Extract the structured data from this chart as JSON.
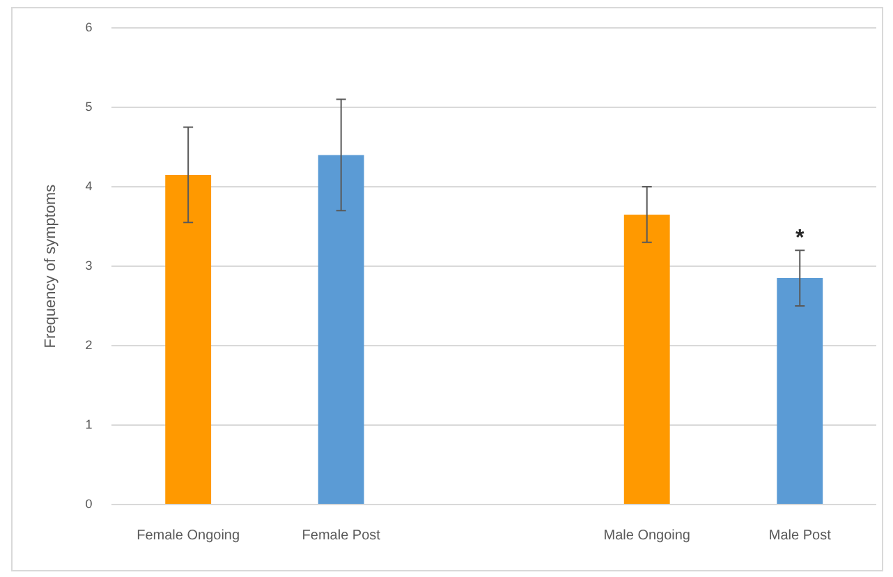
{
  "chart_data": {
    "type": "bar",
    "ylabel": "Frequency of symptoms",
    "categories": [
      "Female Ongoing",
      "Female Post",
      null,
      "Male Ongoing",
      "Male Post"
    ],
    "values": [
      4.15,
      4.4,
      null,
      3.65,
      2.85
    ],
    "colors": [
      "#ff9900",
      "#5b9bd5",
      "#ff9900",
      "#ff9900",
      "#5b9bd5"
    ],
    "errors": [
      0.6,
      0.7,
      null,
      0.35,
      0.35
    ],
    "ylim": [
      0,
      6
    ],
    "yticks": [
      0,
      1,
      2,
      3,
      4,
      5,
      6
    ],
    "grid": "y",
    "legend": false,
    "annotations": [
      {
        "text": "*",
        "x": "Male Post",
        "y": 3.2
      }
    ]
  }
}
